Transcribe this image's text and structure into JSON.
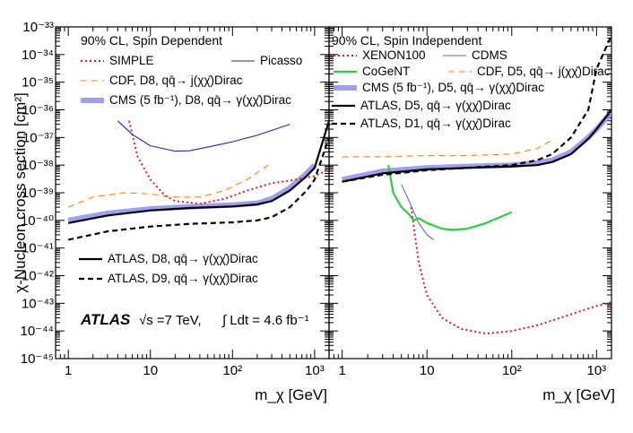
{
  "chart_data": [
    {
      "type": "line",
      "panel": "left",
      "title": "90% CL, Spin Dependent",
      "xlabel": "m_χ [GeV]",
      "ylabel": "χ-Nucleon cross section [cm²]",
      "xscale": "log",
      "yscale": "log",
      "xlim": [
        0.7,
        1500
      ],
      "ylim": [
        1e-45,
        1e-33
      ],
      "x_ticklabels": [
        "1",
        "10",
        "10²",
        "10³"
      ],
      "y_ticklabels": [
        "10⁻⁴⁵",
        "10⁻⁴⁴",
        "10⁻⁴³",
        "10⁻⁴²",
        "10⁻⁴¹",
        "10⁻⁴⁰",
        "10⁻³⁹",
        "10⁻³⁸",
        "10⁻³⁷",
        "10⁻³⁶",
        "10⁻³⁵",
        "10⁻³⁴",
        "10⁻³³"
      ],
      "annotation": {
        "experiment": "ATLAS",
        "energy": "√s =7 TeV,",
        "lumi": "∫ Ldt = 4.6 fb⁻¹"
      },
      "series": [
        {
          "name": "SIMPLE",
          "legend": "SIMPLE",
          "color": "#e31a1c",
          "style": "dotted",
          "points": [
            [
              5.5,
              4e-37
            ],
            [
              7,
              2e-38
            ],
            [
              10,
              3e-39
            ],
            [
              15,
              8e-40
            ],
            [
              20,
              5e-40
            ],
            [
              40,
              4e-40
            ],
            [
              80,
              6e-40
            ],
            [
              150,
              1.2e-39
            ],
            [
              300,
              2.2e-39
            ],
            [
              600,
              3e-39
            ],
            [
              1000,
              4e-39
            ],
            [
              1500,
              7e-39
            ]
          ]
        },
        {
          "name": "Picasso",
          "legend": "Picasso",
          "color": "#1a2aa8",
          "style": "solid-thin",
          "points": [
            [
              4,
              4e-37
            ],
            [
              6,
              1.3e-37
            ],
            [
              10,
              5e-38
            ],
            [
              20,
              3.2e-38
            ],
            [
              30,
              3.3e-38
            ],
            [
              60,
              5e-38
            ],
            [
              100,
              7e-38
            ],
            [
              200,
              1.2e-37
            ],
            [
              500,
              3e-37
            ]
          ]
        },
        {
          "name": "CDF D8",
          "legend": "CDF, D8, qq̄→ j(χχ̄)Dirac",
          "color": "#ff7f0e",
          "style": "dashed-thin",
          "points": [
            [
              1,
              3e-40
            ],
            [
              2,
              7e-40
            ],
            [
              5,
              1e-39
            ],
            [
              10,
              9e-40
            ],
            [
              20,
              7e-40
            ],
            [
              40,
              7e-40
            ],
            [
              80,
              1.2e-39
            ],
            [
              150,
              3e-39
            ],
            [
              300,
              1.2e-38
            ]
          ]
        },
        {
          "name": "CMS D8",
          "legend": "CMS (5 fb⁻¹), D8, qq̄→ γ(χχ̄)Dirac",
          "color": "#8e8ee6",
          "style": "band",
          "points": [
            [
              1,
              1e-40
            ],
            [
              3,
              1.8e-40
            ],
            [
              10,
              2.6e-40
            ],
            [
              30,
              3.1e-40
            ],
            [
              100,
              3.6e-40
            ],
            [
              200,
              4.2e-40
            ],
            [
              300,
              6e-40
            ],
            [
              500,
              1.5e-39
            ],
            [
              800,
              5e-39
            ],
            [
              1000,
              1e-38
            ]
          ]
        },
        {
          "name": "ATLAS D8",
          "legend": "ATLAS, D8, qq̄→ γ(χχ̄)Dirac",
          "color": "#000000",
          "style": "solid-thick",
          "points": [
            [
              1,
              8e-41
            ],
            [
              3,
              1.5e-40
            ],
            [
              10,
              2.3e-40
            ],
            [
              30,
              2.8e-40
            ],
            [
              100,
              3.2e-40
            ],
            [
              200,
              3.8e-40
            ],
            [
              300,
              5e-40
            ],
            [
              500,
              1.2e-39
            ],
            [
              800,
              4e-39
            ],
            [
              1000,
              8e-39
            ],
            [
              1500,
              4e-37
            ]
          ]
        },
        {
          "name": "ATLAS D9",
          "legend": "ATLAS, D9, qq̄→ γ(χχ̄)Dirac",
          "color": "#000000",
          "style": "dashed-thick",
          "points": [
            [
              1,
              2e-41
            ],
            [
              3,
              4e-41
            ],
            [
              10,
              6e-41
            ],
            [
              30,
              7.5e-41
            ],
            [
              100,
              8.5e-41
            ],
            [
              200,
              1e-40
            ],
            [
              300,
              1.3e-40
            ],
            [
              500,
              3e-40
            ],
            [
              800,
              1.2e-39
            ],
            [
              1000,
              3e-39
            ],
            [
              1500,
              1e-37
            ]
          ]
        }
      ]
    },
    {
      "type": "line",
      "panel": "right",
      "title": "90% CL, Spin Independent",
      "xlabel": "m_χ [GeV]",
      "xscale": "log",
      "yscale": "log",
      "xlim": [
        0.7,
        1500
      ],
      "ylim": [
        1e-45,
        1e-33
      ],
      "x_ticklabels": [
        "1",
        "10",
        "10²",
        "10³"
      ],
      "series": [
        {
          "name": "XENON100",
          "legend": "XENON100",
          "color": "#e31a1c",
          "style": "dotted",
          "points": [
            [
              6.5,
              3e-40
            ],
            [
              8,
              3e-42
            ],
            [
              10,
              2e-43
            ],
            [
              15,
              3e-44
            ],
            [
              25,
              1.2e-44
            ],
            [
              50,
              8e-45
            ],
            [
              100,
              1e-44
            ],
            [
              200,
              1.6e-44
            ],
            [
              500,
              4e-44
            ],
            [
              1000,
              8e-44
            ],
            [
              1500,
              1.1e-43
            ]
          ]
        },
        {
          "name": "CDMS",
          "legend": "CDMS",
          "color": "#5a6ac8",
          "style": "solid-thin",
          "points": [
            [
              5,
              2e-39
            ],
            [
              6,
              6e-40
            ],
            [
              7,
              2e-40
            ],
            [
              8,
              8e-41
            ],
            [
              10,
              3e-41
            ],
            [
              12,
              2e-41
            ]
          ]
        },
        {
          "name": "CoGeNT",
          "legend": "CoGeNT",
          "color": "#2ecc40",
          "style": "solid",
          "points": [
            [
              3.5,
              1e-38
            ],
            [
              4,
              1e-39
            ],
            [
              5,
              3e-40
            ],
            [
              6,
              1.8e-40
            ],
            [
              7,
              1e-40
            ],
            [
              8,
              1.2e-40
            ],
            [
              10,
              8e-41
            ],
            [
              15,
              5e-41
            ],
            [
              20,
              4.5e-41
            ],
            [
              30,
              5e-41
            ],
            [
              50,
              8e-41
            ],
            [
              100,
              2e-40
            ]
          ]
        },
        {
          "name": "CDF D5",
          "legend": "CDF, D5, qq̄→ j(χχ̄)Dirac",
          "color": "#ff7f0e",
          "style": "dashed-thin",
          "points": [
            [
              1,
              2e-38
            ],
            [
              3,
              2e-38
            ],
            [
              10,
              2.2e-38
            ],
            [
              30,
              2.2e-38
            ],
            [
              100,
              2.5e-38
            ],
            [
              200,
              4e-38
            ],
            [
              300,
              8e-38
            ]
          ]
        },
        {
          "name": "CMS D5",
          "legend": "CMS (5 fb⁻¹), D5, qq̄→ γ(χχ̄)Dirac",
          "color": "#8e8ee6",
          "style": "band",
          "points": [
            [
              1,
              3e-39
            ],
            [
              3,
              6e-39
            ],
            [
              10,
              8e-39
            ],
            [
              30,
              9e-39
            ],
            [
              100,
              1e-38
            ],
            [
              200,
              1.2e-38
            ],
            [
              300,
              1.5e-38
            ],
            [
              500,
              3e-38
            ],
            [
              800,
              1e-37
            ],
            [
              1000,
              2e-37
            ],
            [
              1500,
              8e-37
            ]
          ]
        },
        {
          "name": "ATLAS D5",
          "legend": "ATLAS, D5, qq̄→ γ(χχ̄)Dirac",
          "color": "#000000",
          "style": "solid-thick",
          "points": [
            [
              1,
              2.5e-39
            ],
            [
              3,
              5e-39
            ],
            [
              10,
              7e-39
            ],
            [
              30,
              8e-39
            ],
            [
              100,
              9e-39
            ],
            [
              200,
              1e-38
            ],
            [
              300,
              1.3e-38
            ],
            [
              500,
              2.5e-38
            ],
            [
              800,
              9e-38
            ],
            [
              1000,
              2e-37
            ],
            [
              1500,
              1e-36
            ]
          ]
        },
        {
          "name": "ATLAS D1",
          "legend": "ATLAS, D1, qq̄→ γ(χχ̄)Dirac",
          "color": "#000000",
          "style": "dashed-thick",
          "points": [
            [
              1,
              2.5e-39
            ],
            [
              3,
              4.5e-39
            ],
            [
              10,
              6.5e-39
            ],
            [
              30,
              8e-39
            ],
            [
              100,
              1e-38
            ],
            [
              200,
              1.5e-38
            ],
            [
              300,
              2.5e-38
            ],
            [
              500,
              1e-37
            ],
            [
              800,
              1e-36
            ],
            [
              1000,
              3e-35
            ],
            [
              1500,
              5e-34
            ]
          ]
        }
      ]
    }
  ]
}
